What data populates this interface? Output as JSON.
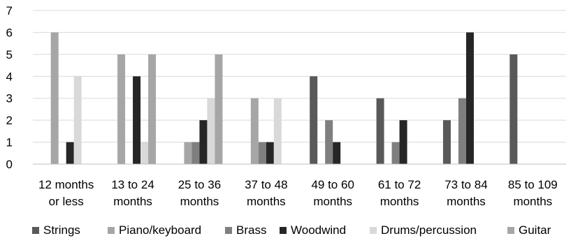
{
  "chart_data": {
    "type": "bar",
    "title": "",
    "xlabel": "",
    "ylabel": "",
    "ylim": [
      0,
      7
    ],
    "yticks": [
      0,
      1,
      2,
      3,
      4,
      5,
      6,
      7
    ],
    "grid": true,
    "legend_position": "bottom",
    "categories": [
      [
        "12 months",
        "or less"
      ],
      [
        "13 to 24",
        "months"
      ],
      [
        "25 to 36",
        "months"
      ],
      [
        "37 to 48",
        "months"
      ],
      [
        "49 to 60",
        "months"
      ],
      [
        "61 to 72",
        "months"
      ],
      [
        "73 to 84",
        "months"
      ],
      [
        "85 to 109",
        "months"
      ]
    ],
    "series": [
      {
        "name": "Strings",
        "color": "#595959",
        "values": [
          0,
          0,
          0,
          0,
          4,
          3,
          2,
          5
        ]
      },
      {
        "name": "Piano/keyboard",
        "color": "#a6a6a6",
        "values": [
          6,
          5,
          1,
          3,
          0,
          0,
          0,
          0
        ]
      },
      {
        "name": "Brass",
        "color": "#7f7f7f",
        "values": [
          0,
          0,
          1,
          1,
          2,
          1,
          3,
          0
        ]
      },
      {
        "name": "Woodwind",
        "color": "#262626",
        "values": [
          1,
          4,
          2,
          1,
          1,
          2,
          6,
          0
        ]
      },
      {
        "name": "Drums/percussion",
        "color": "#d9d9d9",
        "values": [
          4,
          1,
          3,
          3,
          0,
          0,
          0,
          0
        ]
      },
      {
        "name": "Guitar",
        "color": "#a6a6a6",
        "values": [
          0,
          5,
          5,
          0,
          0,
          0,
          0,
          0
        ]
      }
    ]
  }
}
